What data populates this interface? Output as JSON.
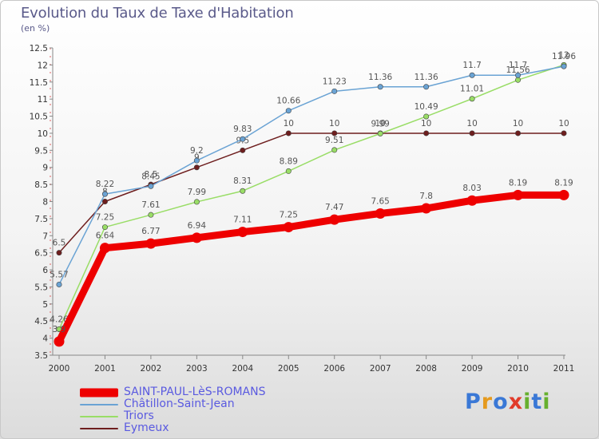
{
  "title": "Evolution du Taux de Taxe d'Habitation",
  "subtitle": "(en %)",
  "logo": {
    "text": "Proxiti",
    "letters": [
      "P",
      "r",
      "o",
      "x",
      "i",
      "t",
      "i"
    ],
    "colors": [
      "#3a78d6",
      "#e59a1e",
      "#3a78d6",
      "#e13b2a",
      "#66b02e",
      "#3a78d6",
      "#66b02e"
    ]
  },
  "chart_data": {
    "type": "line",
    "x": [
      "2000",
      "2001",
      "2002",
      "2003",
      "2004",
      "2005",
      "2006",
      "2007",
      "2008",
      "2009",
      "2010",
      "2011"
    ],
    "ylim": [
      3.5,
      12.5
    ],
    "yticks": [
      "3.5",
      "4",
      "4.5",
      "5",
      "5.5",
      "6",
      "6.5",
      "7",
      "7.5",
      "8",
      "8.5",
      "9",
      "9.5",
      "10",
      "10.5",
      "11",
      "11.5",
      "12",
      "12.5"
    ],
    "grid": false,
    "legend_position": "bottom-left",
    "series": [
      {
        "name": "Eymeux",
        "color": "#6e1e1e",
        "values": [
          6.5,
          8,
          8.5,
          9,
          9.5,
          10,
          10,
          10,
          10,
          10,
          10,
          10
        ],
        "labels": [
          "6.5",
          "8",
          "8.5",
          "9",
          "9.5",
          "10",
          "10",
          "10",
          "10",
          "10",
          "10",
          "10"
        ]
      },
      {
        "name": "Triors",
        "color": "#99dd66",
        "values": [
          4.26,
          7.25,
          7.61,
          7.99,
          8.31,
          8.89,
          9.51,
          9.99,
          10.49,
          11.01,
          11.56,
          12
        ],
        "labels": [
          "4.26",
          "7.25",
          "7.61",
          "7.99",
          "8.31",
          "8.89",
          "9.51",
          "9.99",
          "10.49",
          "11.01",
          "11.56",
          "12"
        ]
      },
      {
        "name": "Châtillon-Saint-Jean",
        "color": "#6aa3d4",
        "values": [
          5.57,
          8.22,
          8.45,
          9.2,
          9.83,
          10.66,
          11.23,
          11.36,
          11.36,
          11.7,
          11.7,
          11.96
        ],
        "labels": [
          "5.57",
          "8.22",
          "8.45",
          "9.2",
          "9.83",
          "10.66",
          "11.23",
          "11.36",
          "11.36",
          "11.7",
          "11.7",
          "11.96"
        ]
      },
      {
        "name": "SAINT-PAUL-LèS-ROMANS",
        "color": "#ee0000",
        "values": [
          3.9,
          6.64,
          6.77,
          6.94,
          7.11,
          7.25,
          7.47,
          7.65,
          7.8,
          8.03,
          8.19,
          8.19
        ],
        "labels": [
          "3.9",
          "6.64",
          "6.77",
          "6.94",
          "7.11",
          "7.25",
          "7.47",
          "7.65",
          "7.8",
          "8.03",
          "8.19",
          "8.19"
        ]
      }
    ],
    "legend": [
      "SAINT-PAUL-LèS-ROMANS",
      "Châtillon-Saint-Jean",
      "Triors",
      "Eymeux"
    ]
  }
}
